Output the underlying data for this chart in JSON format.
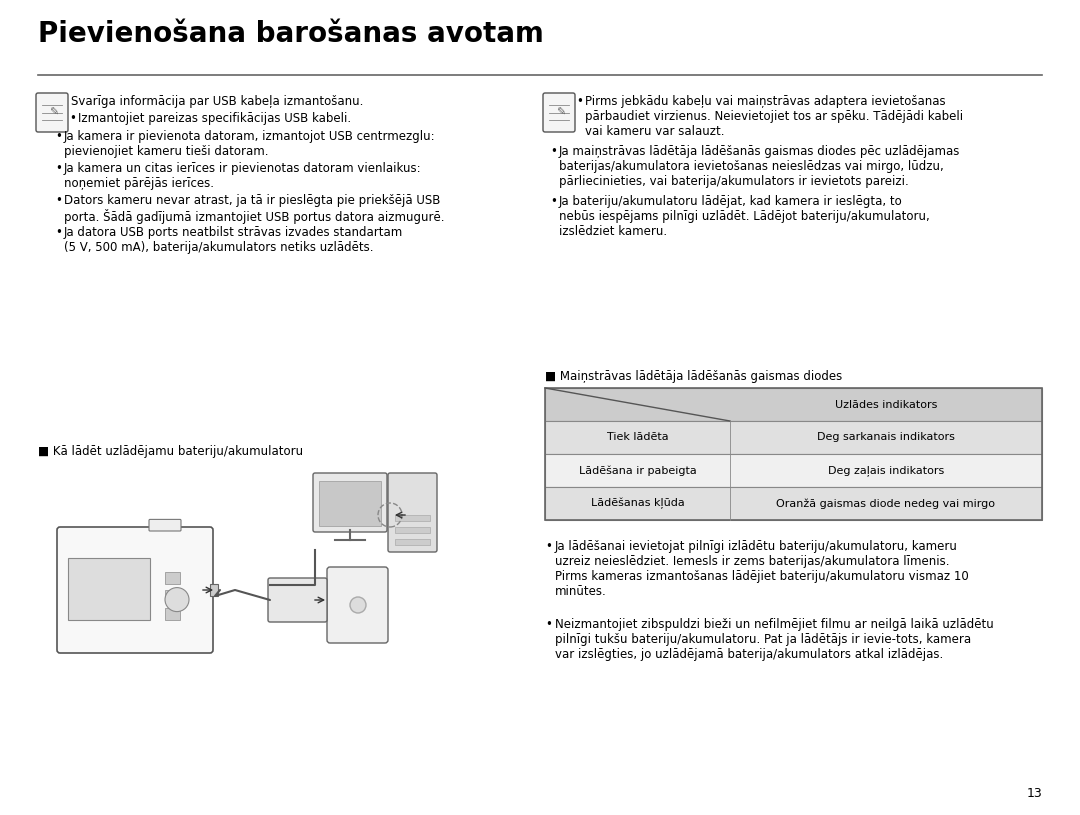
{
  "title": "Pievienošana barošanas avotam",
  "bg_color": "#ffffff",
  "title_color": "#000000",
  "title_fontsize": 20,
  "body_fontsize": 8.5,
  "small_fontsize": 8.0,
  "left_block1_icon_text": "Svarīga informācija par USB kabeļa izmantošanu.",
  "left_block1_bullets": [
    "Izmantojiet pareizas specifikācijas USB kabeli.",
    "Ja kamera ir pievienota datoram, izmantojot USB centrmezglu:\npievienojiet kameru tieši datoram.",
    "Ja kamera un citas ierīces ir pievienotas datoram vienlaikus:\nnoņemiet pārējās ierīces.",
    "Dators kameru nevar atrast, ja tā ir pieslēgta pie priekšējā USB\nporta. Šādā gadījumā izmantojiet USB portus datora aizmugurē.",
    "Ja datora USB ports neatbilst strāvas izvades standartam\n(5 V, 500 mA), baterija/akumulators netiks uzlādēts."
  ],
  "right_block1_bullets": [
    "Pirms jebkādu kabeļu vai maiņstrāvas adaptera ievietošanas\npārbaudiet virzienus. Neievietojiet tos ar spēku. Tādējādi kabeli\nvai kameru var salauzt.",
    "Ja maiņstrāvas lādētāja lādēšanās gaismas diodes pēc uzlādējamas\nbaterijas/akumulatora ievietošanas neieslēdzas vai mirgo, lūdzu,\npārliecinieties, vai baterija/akumulators ir ievietots pareizi.",
    "Ja bateriju/akumulatoru lādējat, kad kamera ir ieslēgta, to\nnebūs iespējams pilnīgi uzlādēt. Lādējot bateriju/akumulatoru,\nizslēdziet kameru."
  ],
  "section_label": "■ Kā lādēt uzlādējamu bateriju/akumulatoru",
  "table_label": "■ Maiņstrāvas lādētāja lādēšanās gaismas diodes",
  "table_header_right": "Uzlādes indikators",
  "table_rows": [
    [
      "Tiek lādēta",
      "Deg sarkanais indikators"
    ],
    [
      "Lādēšana ir pabeigta",
      "Deg zaļais indikators"
    ],
    [
      "Lādēšanas kļūda",
      "Oranžā gaismas diode nedeg vai mirgo"
    ]
  ],
  "table_bg_header": "#cccccc",
  "table_bg_row_odd": "#e0e0e0",
  "table_bg_row_even": "#f0f0f0",
  "bottom_bullets_right": [
    "Ja lādēšanai ievietojat pilnīgi izlādētu bateriju/akumulatoru, kameru\nuzreiz neieslēdziet. Iemesls ir zems baterijas/akumulatora līmenis.\nPirms kameras izmantošanas lādējiet bateriju/akumulatoru vismaz 10\nminūtes.",
    "Neizmantojiet zibspuldzi bieži un nefilmējiet filmu ar neilgā laikā uzlādētu\npilnīgi tukšu bateriju/akumulatoru. Pat ja lādētājs ir ievie-tots, kamera\nvar izslēgties, jo uzlādējamā baterija/akumulators atkal izlādējas."
  ],
  "page_number": "13"
}
